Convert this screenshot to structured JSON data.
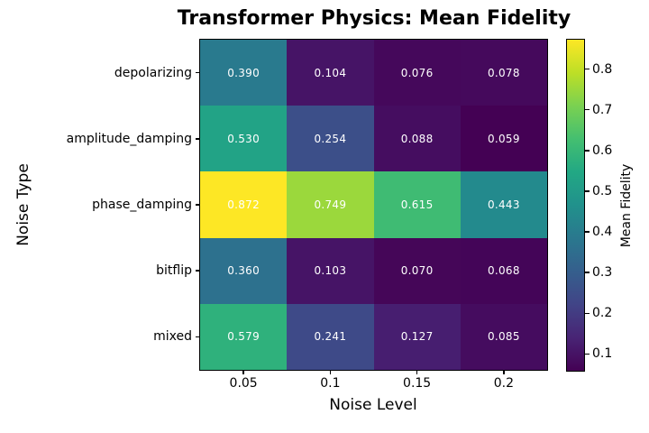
{
  "figure": {
    "background_color": "#ffffff",
    "text_color": "#000000"
  },
  "chart_data": {
    "type": "heatmap",
    "title": "Transformer Physics: Mean Fidelity",
    "xlabel": "Noise Level",
    "ylabel": "Noise Type",
    "x_categories": [
      "0.05",
      "0.1",
      "0.15",
      "0.2"
    ],
    "y_categories": [
      "depolarizing",
      "amplitude_damping",
      "phase_damping",
      "bitflip",
      "mixed"
    ],
    "rows": [
      {
        "noise_type": "depolarizing",
        "values": [
          0.39,
          0.104,
          0.076,
          0.078
        ]
      },
      {
        "noise_type": "amplitude_damping",
        "values": [
          0.53,
          0.254,
          0.088,
          0.059
        ]
      },
      {
        "noise_type": "phase_damping",
        "values": [
          0.872,
          0.749,
          0.615,
          0.443
        ]
      },
      {
        "noise_type": "bitflip",
        "values": [
          0.36,
          0.103,
          0.07,
          0.068
        ]
      },
      {
        "noise_type": "mixed",
        "values": [
          0.579,
          0.241,
          0.127,
          0.085
        ]
      }
    ],
    "value_format_decimals": 3,
    "annotation_color": "#ffffff",
    "grid": false,
    "legend": "none",
    "colormap": "viridis",
    "colormap_stops": [
      "#440154",
      "#482475",
      "#414487",
      "#355f8d",
      "#2a788e",
      "#21918c",
      "#22a884",
      "#44bf70",
      "#7ad151",
      "#bddf26",
      "#fde725"
    ],
    "colorbar": {
      "label": "Mean Fidelity",
      "tick_values": [
        0.1,
        0.2,
        0.3,
        0.4,
        0.5,
        0.6,
        0.7,
        0.8
      ],
      "tick_labels": [
        "0.1",
        "0.2",
        "0.3",
        "0.4",
        "0.5",
        "0.6",
        "0.7",
        "0.8"
      ]
    }
  }
}
